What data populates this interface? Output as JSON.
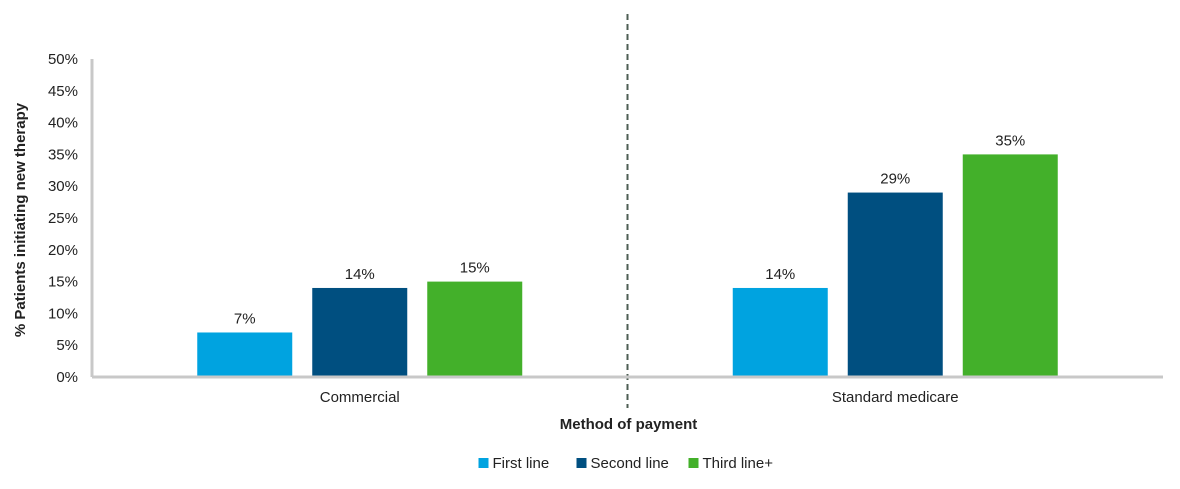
{
  "chart_data": {
    "type": "bar",
    "categories": [
      "Commercial",
      "Standard medicare"
    ],
    "series": [
      {
        "name": "First line",
        "values": [
          7,
          14
        ],
        "color": "#00A3E0"
      },
      {
        "name": "Second line",
        "values": [
          14,
          29
        ],
        "color": "#004F80"
      },
      {
        "name": "Third line+",
        "values": [
          15,
          35
        ],
        "color": "#43B02A"
      }
    ],
    "value_suffix": "%",
    "xlabel": "Method of payment",
    "ylabel": "% Patients initiating new therapy",
    "ylim": [
      0,
      50
    ],
    "yticks": [
      0,
      5,
      10,
      15,
      20,
      25,
      30,
      35,
      40,
      45,
      50
    ],
    "grid": false,
    "legend_position": "bottom",
    "category_separator": "dashed",
    "colors": {
      "separator": "#4D5D53",
      "axis": "#C8C8C8"
    }
  }
}
